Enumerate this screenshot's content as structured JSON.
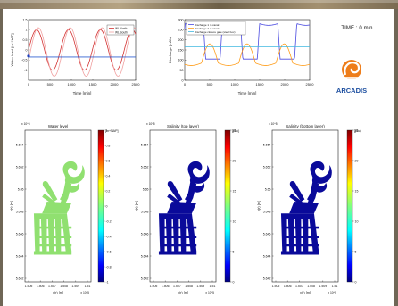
{
  "time_label": "TIME : 0 min",
  "logo": {
    "text": "ARCADIS",
    "colors": {
      "swirl": "#ee7d1a",
      "text": "#1d4fa0"
    }
  },
  "chart_data": [
    {
      "type": "line",
      "title": "",
      "xlabel": "Time [min]",
      "ylabel": "Water level [m+NAP]",
      "xlim": [
        0,
        2500
      ],
      "ylim": [
        -1.5,
        1.5
      ],
      "x_ticks": [
        0,
        500,
        1000,
        1500,
        2000,
        2500
      ],
      "y_ticks": [
        -1,
        -0.5,
        0,
        0.5,
        1,
        1.5
      ],
      "legend": {
        "placement": "top-right"
      },
      "series": [
        {
          "name": "WL North",
          "color": "#d23030",
          "amplitude": 1.0,
          "period": 745,
          "phase": 0.0,
          "offset": 0.0
        },
        {
          "name": "WL South",
          "color": "#f0a0a0",
          "amplitude": 1.2,
          "period": 745,
          "phase": -0.35,
          "offset": -0.1
        },
        {
          "name": "",
          "color": "#3060d0",
          "constant": -0.35
        }
      ],
      "marker": {
        "x": 0,
        "y": -0.3,
        "color": "#1f3fbf"
      }
    },
    {
      "type": "line",
      "title": "",
      "xlabel": "Time [min]",
      "ylabel": "Discharge [m3/s]",
      "xlim": [
        0,
        2500
      ],
      "ylim": [
        0,
        300
      ],
      "x_ticks": [
        0,
        500,
        1000,
        1500,
        2000,
        2500
      ],
      "y_ticks": [
        0,
        50,
        100,
        150,
        200,
        250,
        300
      ],
      "legend": {
        "placement": "top-left"
      },
      "series": [
        {
          "name": "Discharge 1 m canal",
          "color": "#4a4ae0",
          "kind": "square",
          "high": 280,
          "low": 105,
          "period": 745,
          "duty": 0.55,
          "phase": 0.05
        },
        {
          "name": "Discharge 2 m canal",
          "color": "#ff9d1a",
          "kind": "bump",
          "base": 85,
          "amp": 95,
          "period": 745,
          "phase": 0.55
        },
        {
          "name": "Discharge closure gate (steel box)",
          "color": "#40b8e0",
          "kind": "constant",
          "value": 165
        }
      ]
    },
    {
      "type": "heatmap",
      "title": "Water level",
      "colorbar_unit": "[m+NAP]",
      "colorbar_range": [
        -1,
        1
      ],
      "colorbar_ticks": [
        -1,
        -0.8,
        -0.6,
        -0.4,
        -0.2,
        0,
        0.2,
        0.4,
        0.6,
        0.8,
        1
      ],
      "field_color": "#90e070",
      "xlabel": "x(r) [m]",
      "ylabel": "y(r) [m]",
      "x_ticks": [
        "1.505",
        "1.506",
        "1.507",
        "1.508",
        "1.509",
        "1.51"
      ],
      "y_ticks": [
        "5.654",
        "5.652",
        "5.65",
        "5.648",
        "5.646",
        "5.644",
        "5.642"
      ],
      "x_exponent": "x 10^5",
      "y_exponent": "x 10^5"
    },
    {
      "type": "heatmap",
      "title": "Salinity (top layer)",
      "colorbar_unit": "[psu]",
      "colorbar_range": [
        0,
        25
      ],
      "colorbar_ticks": [
        0,
        5,
        10,
        15,
        20,
        25
      ],
      "field_color": "#0a0a9a",
      "xlabel": "x(r) [m]",
      "ylabel": "y(r) [m]",
      "x_ticks": [
        "1.505",
        "1.506",
        "1.507",
        "1.508",
        "1.509",
        "1.51"
      ],
      "y_ticks": [
        "5.654",
        "5.652",
        "5.65",
        "5.648",
        "5.646",
        "5.644",
        "5.642"
      ],
      "x_exponent": "x 10^5",
      "y_exponent": "x 10^5"
    },
    {
      "type": "heatmap",
      "title": "Salinity (bottom layer)",
      "colorbar_unit": "[psu]",
      "colorbar_range": [
        0,
        25
      ],
      "colorbar_ticks": [
        0,
        5,
        10,
        15,
        20,
        25
      ],
      "field_color": "#0a0a9a",
      "xlabel": "x(r) [m]",
      "ylabel": "y(r) [m]",
      "x_ticks": [
        "1.505",
        "1.506",
        "1.507",
        "1.508",
        "1.509",
        "1.51"
      ],
      "y_ticks": [
        "5.654",
        "5.652",
        "5.65",
        "5.648",
        "5.646",
        "5.644",
        "5.642"
      ],
      "x_exponent": "x 10^5",
      "y_exponent": "x 10^5"
    }
  ]
}
